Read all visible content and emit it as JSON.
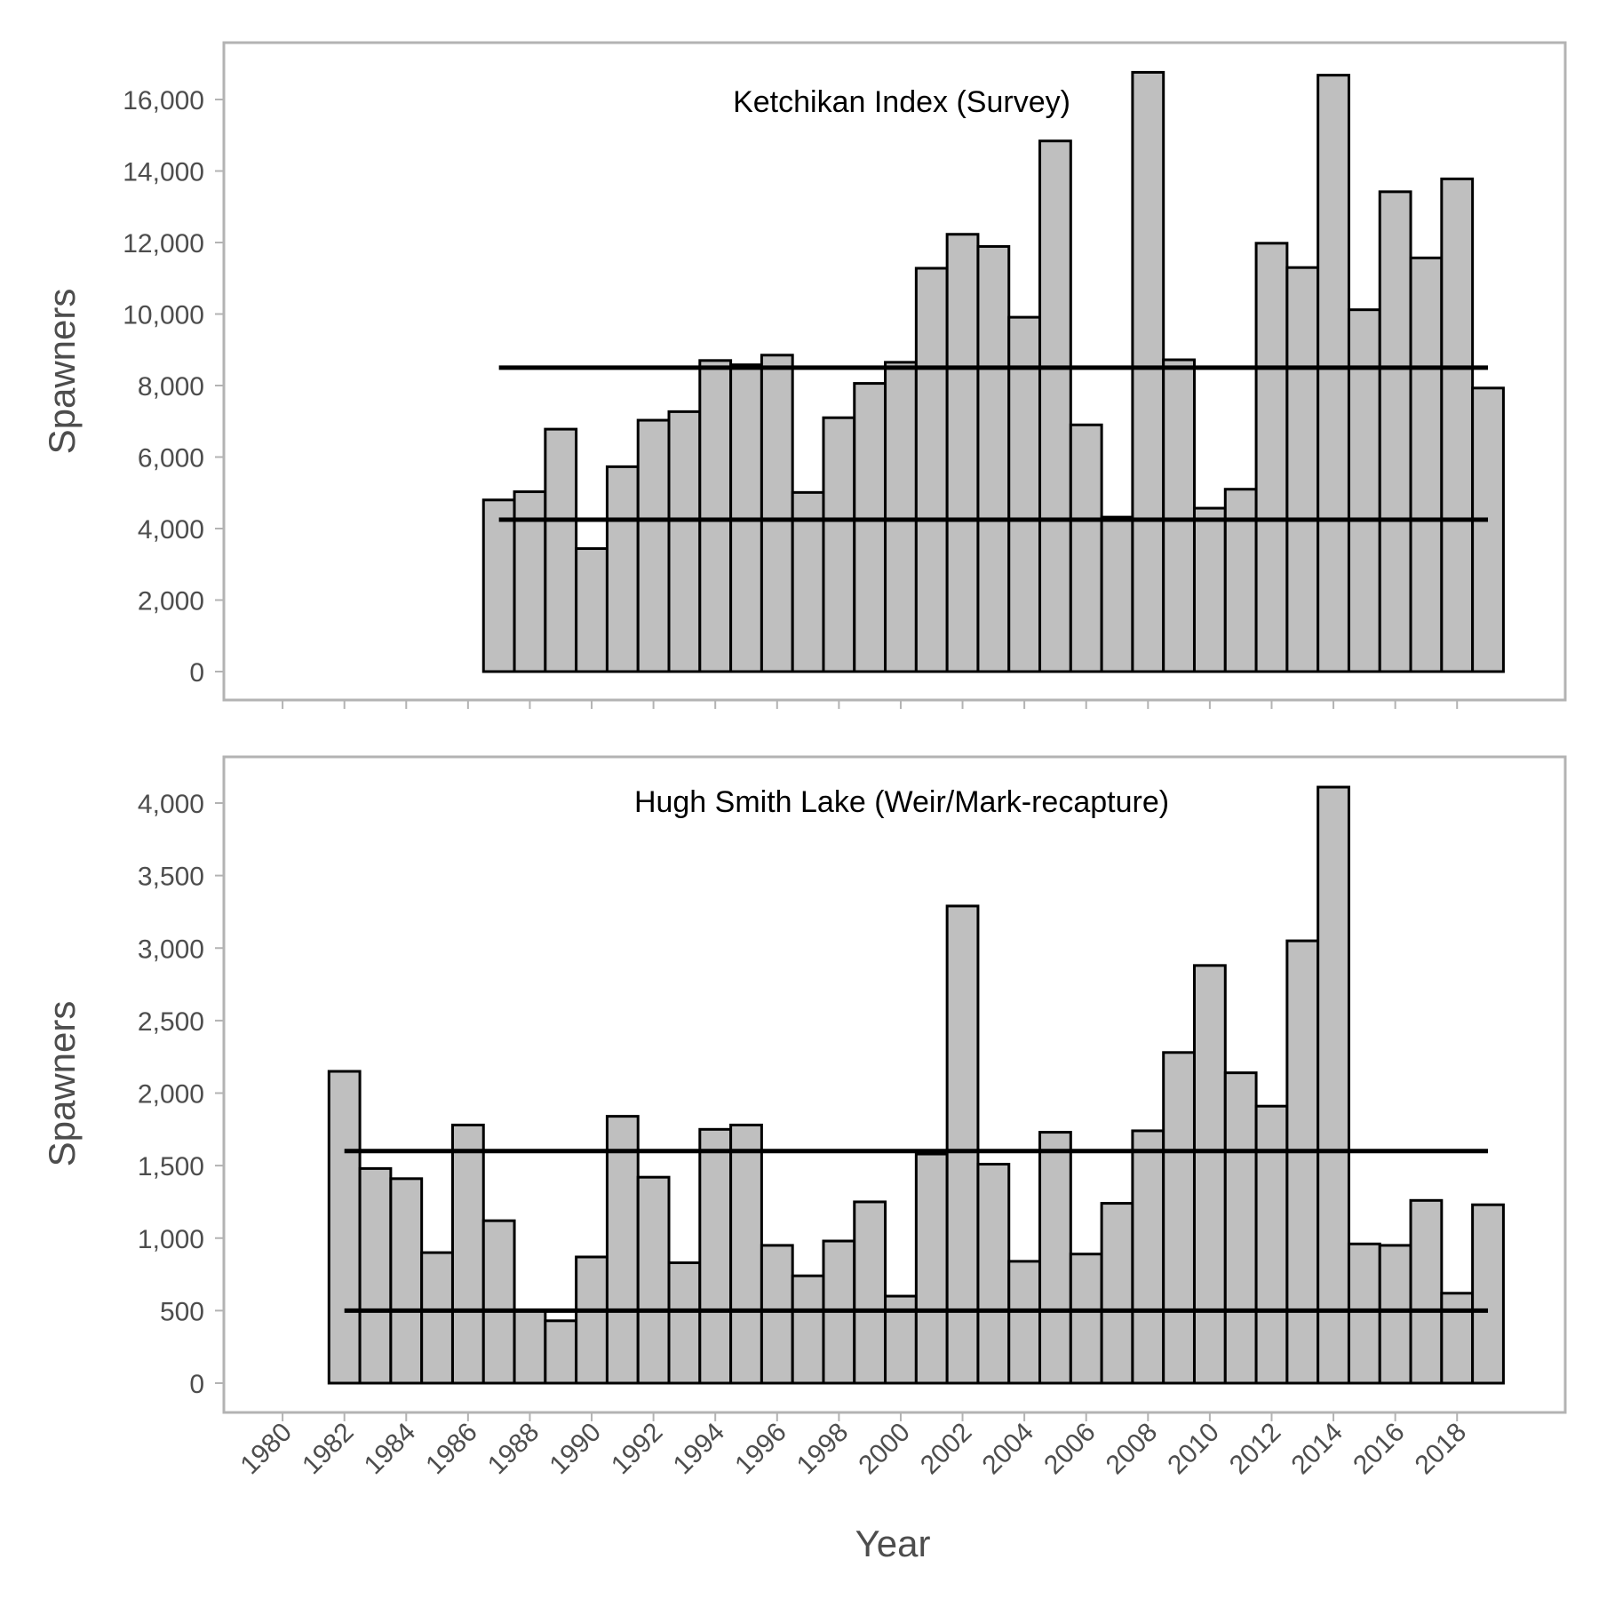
{
  "chart_data": [
    {
      "type": "bar",
      "title": "Ketchikan Index (Survey)",
      "xlabel": "",
      "ylabel": "Spawners",
      "ylim": [
        0,
        17400
      ],
      "yticks": [
        0,
        2000,
        4000,
        6000,
        8000,
        10000,
        12000,
        14000,
        16000
      ],
      "ytick_labels": [
        "0",
        "2,000",
        "4,000",
        "6,000",
        "8,000",
        "10,000",
        "12,000",
        "14,000",
        "16,000"
      ],
      "x": [
        1987,
        1988,
        1989,
        1990,
        1991,
        1992,
        1993,
        1994,
        1995,
        1996,
        1997,
        1998,
        1999,
        2000,
        2001,
        2002,
        2003,
        2004,
        2005,
        2006,
        2007,
        2008,
        2009,
        2010,
        2011,
        2012,
        2013,
        2014,
        2015,
        2016,
        2017,
        2018,
        2019
      ],
      "values": [
        4800,
        5030,
        6780,
        3440,
        5730,
        7030,
        7270,
        8700,
        8580,
        8850,
        5010,
        7100,
        8060,
        8650,
        11280,
        12230,
        11890,
        9910,
        14840,
        6900,
        4320,
        16760,
        8720,
        4570,
        5100,
        11980,
        11300,
        16680,
        10120,
        13420,
        11570,
        13780,
        7930
      ],
      "reference_lines": [
        {
          "y": 8500,
          "x_range": [
            1987,
            2019
          ]
        },
        {
          "y": 4250,
          "x_range": [
            1987,
            2019
          ]
        }
      ],
      "bar_color": "#bfbfbf",
      "edge_color": "#000000",
      "grid": false
    },
    {
      "type": "bar",
      "title": "Hugh Smith Lake (Weir/Mark-recapture)",
      "xlabel": "Year",
      "ylabel": "Spawners",
      "ylim": [
        0,
        4300
      ],
      "yticks": [
        0,
        500,
        1000,
        1500,
        2000,
        2500,
        3000,
        3500,
        4000
      ],
      "ytick_labels": [
        "0",
        "500",
        "1,000",
        "1,500",
        "2,000",
        "2,500",
        "3,000",
        "3,500",
        "4,000"
      ],
      "x": [
        1982,
        1983,
        1984,
        1985,
        1986,
        1987,
        1988,
        1989,
        1990,
        1991,
        1992,
        1993,
        1994,
        1995,
        1996,
        1997,
        1998,
        1999,
        2000,
        2001,
        2002,
        2003,
        2004,
        2005,
        2006,
        2007,
        2008,
        2009,
        2010,
        2011,
        2012,
        2013,
        2014,
        2015,
        2016,
        2017,
        2018,
        2019
      ],
      "values": [
        2150,
        1480,
        1410,
        900,
        1780,
        1120,
        500,
        430,
        870,
        1840,
        1420,
        830,
        1750,
        1780,
        950,
        740,
        980,
        1250,
        600,
        1580,
        3290,
        1510,
        840,
        1730,
        890,
        1240,
        1740,
        2280,
        2880,
        2140,
        1910,
        3050,
        4110,
        960,
        950,
        1260,
        620,
        1230
      ],
      "reference_lines": [
        {
          "y": 1600,
          "x_range": [
            1982,
            2019
          ]
        },
        {
          "y": 500,
          "x_range": [
            1982,
            2019
          ]
        }
      ],
      "bar_color": "#bfbfbf",
      "edge_color": "#000000",
      "grid": false
    }
  ],
  "x_axis": {
    "range": [
      1978.1,
      2021.5
    ],
    "ticks": [
      1980,
      1982,
      1984,
      1986,
      1988,
      1990,
      1992,
      1994,
      1996,
      1998,
      2000,
      2002,
      2004,
      2006,
      2008,
      2010,
      2012,
      2014,
      2016,
      2018
    ],
    "tick_labels": [
      "1980",
      "1982",
      "1984",
      "1986",
      "1988",
      "1990",
      "1992",
      "1994",
      "1996",
      "1998",
      "2000",
      "2002",
      "2004",
      "2006",
      "2008",
      "2010",
      "2012",
      "2014",
      "2016",
      "2018"
    ]
  }
}
